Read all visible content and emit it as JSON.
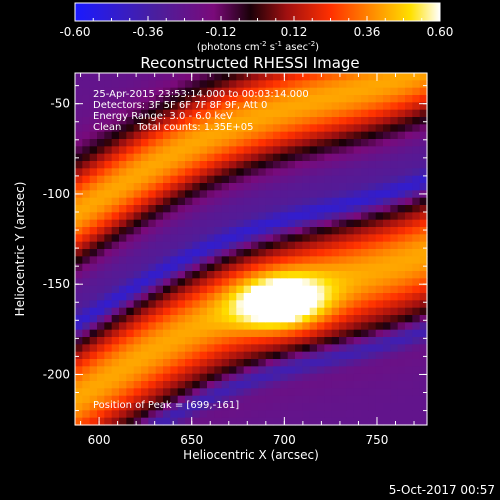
{
  "chart_data": {
    "type": "heatmap",
    "title": "Reconstructed RHESSI Image",
    "xlabel": "Heliocentric X (arcsec)",
    "ylabel": "Heliocentric Y (arcsec)",
    "xlim": [
      587,
      777
    ],
    "ylim": [
      -228,
      -33
    ],
    "x_ticks": [
      600,
      650,
      700,
      750
    ],
    "y_ticks": [
      -50,
      -100,
      -150,
      -200
    ],
    "colorbar": {
      "min": -0.6,
      "max": 0.6,
      "ticks": [
        "-0.60",
        "-0.36",
        "-0.12",
        "0.12",
        "0.36",
        "0.60"
      ],
      "units_main": "(photons cm",
      "units_sup1": "-2",
      "units_mid": " s",
      "units_sup2": "-1",
      "units_end": " asec",
      "units_sup3": "-2",
      "units_close": ")",
      "colors": [
        "#1a1aff",
        "#2020d0",
        "#4a1f9e",
        "#7a0a7a",
        "#2a0a10",
        "#a01010",
        "#ff3000",
        "#ff9000",
        "#ffe000",
        "#ffffff"
      ]
    },
    "annotations": {
      "time_range": "25-Apr-2015 23:53:14.000 to 00:03:14.000",
      "detectors": "Detectors: 3F 5F 6F 7F 8F 9F, Att 0",
      "energy": "Energy Range: 3.0 - 6.0 keV",
      "clean": "Clean     Total counts: 1.35E+05",
      "peak": "Position of Peak = [699,-161]"
    },
    "peak": {
      "x": 699,
      "y": -161
    },
    "bands": [
      {
        "type": "bright",
        "intercept": -160,
        "slope": 0.45,
        "width": 32
      },
      {
        "type": "dark",
        "intercept": -108,
        "slope": 0.45,
        "width": 26
      },
      {
        "type": "bright",
        "intercept": -58,
        "slope": 0.45,
        "width": 28
      }
    ]
  },
  "footer": {
    "date": "5-Oct-2017 00:57"
  }
}
